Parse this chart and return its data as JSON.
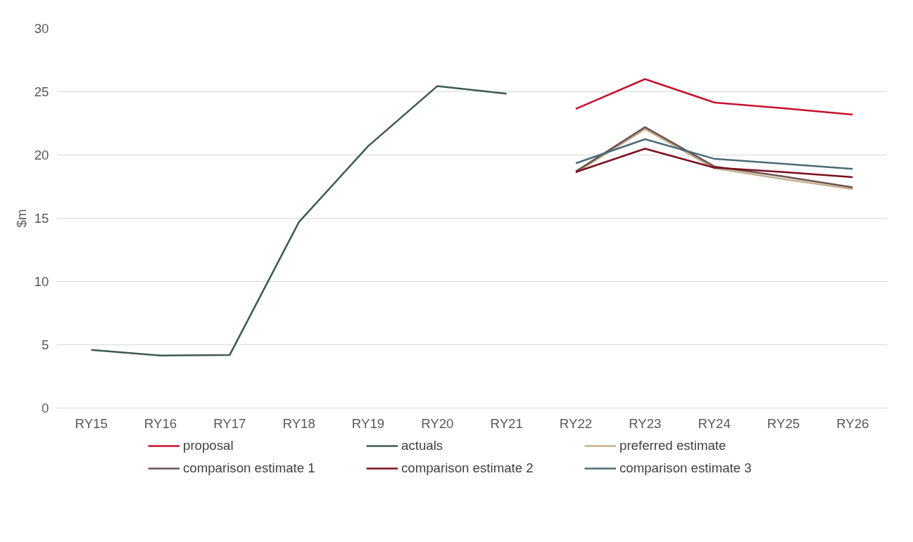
{
  "chart_data": {
    "type": "line",
    "ylabel": "$m",
    "categories": [
      "RY15",
      "RY16",
      "RY17",
      "RY18",
      "RY19",
      "RY20",
      "RY21",
      "RY22",
      "RY23",
      "RY24",
      "RY25",
      "RY26"
    ],
    "ylim": [
      0,
      30
    ],
    "yticks": [
      0,
      5,
      10,
      15,
      20,
      25,
      30
    ],
    "grid": "y",
    "legend": "bottom",
    "line_style": "solid",
    "marker": "none",
    "series": [
      {
        "name": "proposal",
        "color": "#c8102e",
        "values": [
          null,
          null,
          null,
          null,
          null,
          null,
          null,
          23.65,
          26.0,
          24.15,
          23.7,
          23.2
        ]
      },
      {
        "name": "actuals",
        "color": "#3b5a50",
        "values": [
          4.6,
          4.15,
          4.2,
          14.7,
          20.7,
          25.45,
          24.85,
          null,
          null,
          null,
          null,
          null
        ]
      },
      {
        "name": "preferred estimate",
        "color": "#c4b08c",
        "values": [
          null,
          null,
          null,
          null,
          null,
          null,
          null,
          18.6,
          22.05,
          18.95,
          18.1,
          17.3
        ]
      },
      {
        "name": "comparison estimate 1",
        "color": "#6b5250",
        "values": [
          null,
          null,
          null,
          null,
          null,
          null,
          null,
          18.7,
          22.2,
          19.1,
          18.3,
          17.45
        ]
      },
      {
        "name": "comparison estimate 2",
        "color": "#7a0f1e",
        "values": [
          null,
          null,
          null,
          null,
          null,
          null,
          null,
          18.65,
          20.5,
          19.0,
          18.65,
          18.25
        ]
      },
      {
        "name": "comparison estimate 3",
        "color": "#4a6b78",
        "values": [
          null,
          null,
          null,
          null,
          null,
          null,
          null,
          19.35,
          21.25,
          19.7,
          19.3,
          18.9
        ]
      }
    ]
  }
}
